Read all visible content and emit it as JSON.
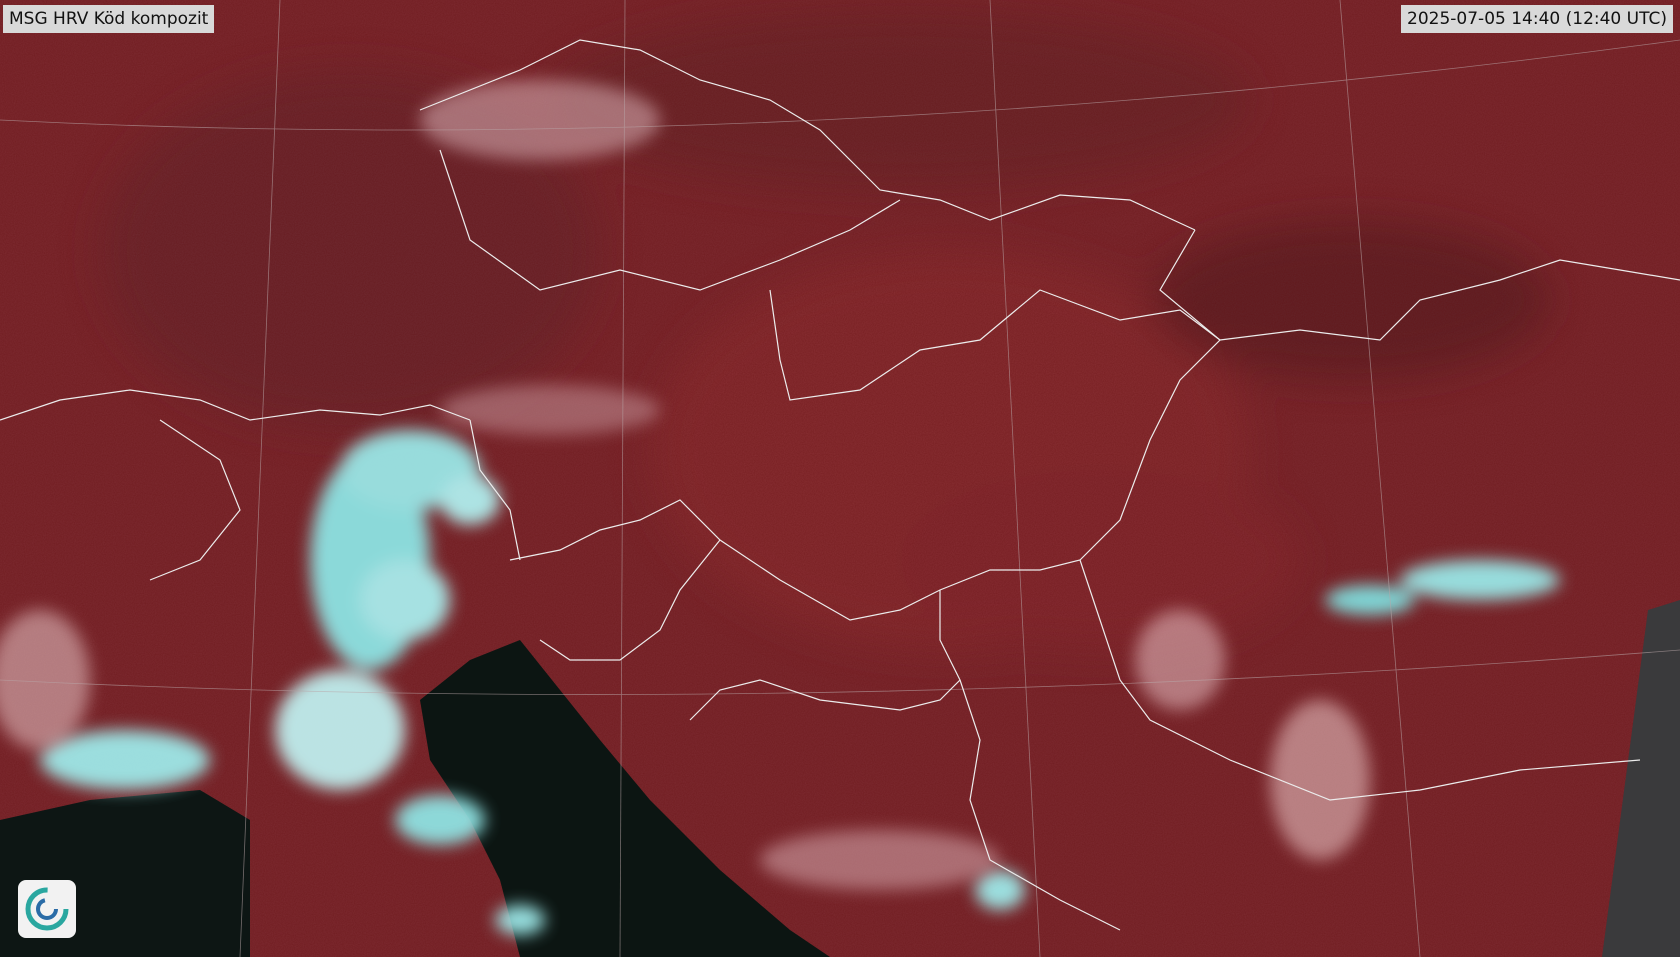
{
  "header": {
    "title": "MSG HRV Köd kompozit",
    "timestamp": "2025-07-05 14:40 (12:40 UTC)"
  }
}
